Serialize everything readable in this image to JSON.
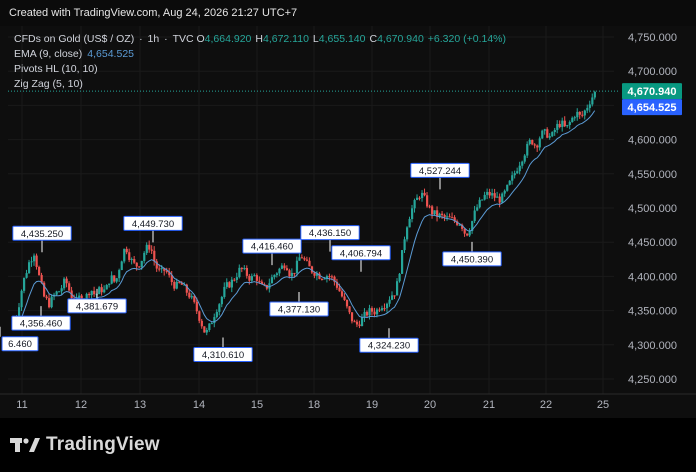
{
  "header": {
    "caption": "Created with TradingView.com, Aug 24, 2026 21:27 UTC+7"
  },
  "legend": {
    "symbol": "CFDs on Gold (US$ / OZ)",
    "interval": "1h",
    "source": "TVC",
    "ohlc": [
      {
        "key": "O",
        "value": "4,664.920"
      },
      {
        "key": "H",
        "value": "4,672.110"
      },
      {
        "key": "L",
        "value": "4,655.140"
      },
      {
        "key": "C",
        "value": "4,670.940"
      }
    ],
    "change": "+6.320 (+0.14%)",
    "ema_label": "EMA (9, close)",
    "ema_value": "4,654.525",
    "pivots_label": "Pivots HL (10, 10)",
    "zigzag_label": "Zig Zag (5, 10)"
  },
  "colors": {
    "up": "#26a69a",
    "down": "#ef5350",
    "ema": "#5b9bd5",
    "price_tag": "#089981",
    "ema_tag": "#2962ff",
    "grid": "#1a1a1a"
  },
  "footer": {
    "brand": "TradingView",
    "logo_icon": "tradingview-logo-icon"
  },
  "chart_data": {
    "type": "candlestick",
    "y_axis": {
      "ticks": [
        "4,250.000",
        "4,300.000",
        "4,350.000",
        "4,400.000",
        "4,450.000",
        "4,500.000",
        "4,550.000",
        "4,600.000",
        "4,650.000",
        "4,700.000",
        "4,750.000"
      ],
      "range": [
        4225,
        4770
      ]
    },
    "x_axis": {
      "ticks": [
        "11",
        "12",
        "13",
        "14",
        "15",
        "18",
        "19",
        "20",
        "21",
        "22",
        "25"
      ]
    },
    "last_price": {
      "value": 4670.94,
      "label": "4,670.940"
    },
    "ema_last": {
      "value": 4654.525,
      "label": "4,654.525"
    },
    "pivots": [
      {
        "label": "6.460",
        "value": 4326.46,
        "type": "low"
      },
      {
        "label": "4,435.250",
        "value": 4435.25,
        "type": "high"
      },
      {
        "label": "4,356.460",
        "value": 4356.46,
        "type": "low"
      },
      {
        "label": "4,381.679",
        "value": 4381.679,
        "type": "low"
      },
      {
        "label": "4,449.730",
        "value": 4449.73,
        "type": "high"
      },
      {
        "label": "4,310.610",
        "value": 4310.61,
        "type": "low"
      },
      {
        "label": "4,416.460",
        "value": 4416.46,
        "type": "high"
      },
      {
        "label": "4,377.130",
        "value": 4377.13,
        "type": "low"
      },
      {
        "label": "4,436.150",
        "value": 4436.15,
        "type": "high"
      },
      {
        "label": "4,406.794",
        "value": 4406.794,
        "type": "high"
      },
      {
        "label": "4,324.230",
        "value": 4324.23,
        "type": "low"
      },
      {
        "label": "4,527.244",
        "value": 4527.244,
        "type": "high"
      },
      {
        "label": "4,450.390",
        "value": 4450.39,
        "type": "low"
      }
    ],
    "price_path": [
      [
        0,
        4330
      ],
      [
        3,
        4350
      ],
      [
        7,
        4390
      ],
      [
        12,
        4420
      ],
      [
        16,
        4435
      ],
      [
        20,
        4400
      ],
      [
        24,
        4370
      ],
      [
        28,
        4360
      ],
      [
        33,
        4375
      ],
      [
        37,
        4380
      ],
      [
        41,
        4395
      ],
      [
        45,
        4375
      ],
      [
        49,
        4360
      ],
      [
        53,
        4372
      ],
      [
        57,
        4368
      ],
      [
        61,
        4382
      ],
      [
        65,
        4372
      ],
      [
        69,
        4382
      ],
      [
        73,
        4378
      ],
      [
        77,
        4400
      ],
      [
        81,
        4390
      ],
      [
        85,
        4420
      ],
      [
        89,
        4445
      ],
      [
        93,
        4425
      ],
      [
        97,
        4415
      ],
      [
        101,
        4420
      ],
      [
        105,
        4440
      ],
      [
        109,
        4445
      ],
      [
        113,
        4415
      ],
      [
        117,
        4405
      ],
      [
        121,
        4410
      ],
      [
        125,
        4395
      ],
      [
        129,
        4385
      ],
      [
        133,
        4390
      ],
      [
        137,
        4380
      ],
      [
        141,
        4370
      ],
      [
        145,
        4355
      ],
      [
        149,
        4335
      ],
      [
        153,
        4315
      ],
      [
        157,
        4330
      ],
      [
        161,
        4350
      ],
      [
        165,
        4365
      ],
      [
        169,
        4385
      ],
      [
        173,
        4390
      ],
      [
        177,
        4400
      ],
      [
        181,
        4412
      ],
      [
        185,
        4405
      ],
      [
        189,
        4396
      ],
      [
        193,
        4402
      ],
      [
        197,
        4385
      ],
      [
        201,
        4382
      ],
      [
        205,
        4395
      ],
      [
        209,
        4405
      ],
      [
        213,
        4412
      ],
      [
        217,
        4420
      ],
      [
        221,
        4400
      ],
      [
        225,
        4412
      ],
      [
        229,
        4432
      ],
      [
        233,
        4420
      ],
      [
        237,
        4410
      ],
      [
        241,
        4405
      ],
      [
        245,
        4400
      ],
      [
        249,
        4402
      ],
      [
        253,
        4400
      ],
      [
        257,
        4390
      ],
      [
        261,
        4375
      ],
      [
        265,
        4358
      ],
      [
        269,
        4340
      ],
      [
        273,
        4328
      ],
      [
        277,
        4335
      ],
      [
        281,
        4345
      ],
      [
        285,
        4350
      ],
      [
        289,
        4348
      ],
      [
        293,
        4358
      ],
      [
        297,
        4360
      ],
      [
        301,
        4372
      ],
      [
        305,
        4378
      ],
      [
        309,
        4420
      ],
      [
        313,
        4470
      ],
      [
        317,
        4495
      ],
      [
        321,
        4510
      ],
      [
        325,
        4522
      ],
      [
        329,
        4510
      ],
      [
        333,
        4495
      ],
      [
        337,
        4490
      ],
      [
        341,
        4488
      ],
      [
        345,
        4485
      ],
      [
        349,
        4484
      ],
      [
        353,
        4480
      ],
      [
        357,
        4478
      ],
      [
        361,
        4460
      ],
      [
        365,
        4475
      ],
      [
        369,
        4498
      ],
      [
        373,
        4510
      ],
      [
        377,
        4520
      ],
      [
        381,
        4520
      ],
      [
        385,
        4515
      ],
      [
        389,
        4512
      ],
      [
        393,
        4525
      ],
      [
        397,
        4540
      ],
      [
        401,
        4555
      ],
      [
        405,
        4570
      ],
      [
        409,
        4585
      ],
      [
        413,
        4600
      ],
      [
        417,
        4590
      ],
      [
        421,
        4608
      ],
      [
        425,
        4610
      ],
      [
        429,
        4602
      ],
      [
        433,
        4618
      ],
      [
        437,
        4625
      ],
      [
        441,
        4615
      ],
      [
        445,
        4628
      ],
      [
        449,
        4640
      ],
      [
        453,
        4632
      ],
      [
        457,
        4645
      ],
      [
        461,
        4660
      ],
      [
        465,
        4671
      ]
    ]
  }
}
